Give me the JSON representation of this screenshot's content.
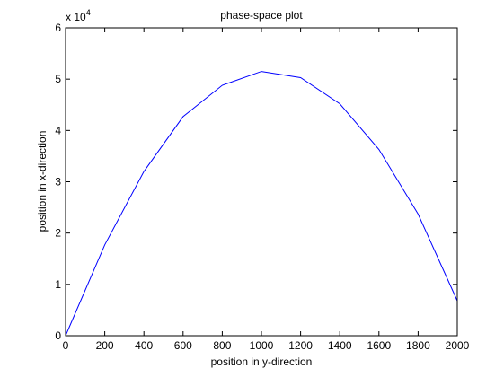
{
  "chart_data": {
    "type": "line",
    "title": "phase-space plot",
    "xlabel": "position in y-direction",
    "ylabel": "position in x-direction",
    "xlim": [
      0,
      2000
    ],
    "ylim": [
      0,
      60000
    ],
    "y_exponent_label": "x 10",
    "y_exponent_power": "4",
    "x_ticks": [
      0,
      200,
      400,
      600,
      800,
      1000,
      1200,
      1400,
      1600,
      1800,
      2000
    ],
    "y_ticks": [
      0,
      10000,
      20000,
      30000,
      40000,
      50000,
      60000
    ],
    "y_tick_labels": [
      "0",
      "1",
      "2",
      "3",
      "4",
      "5",
      "6"
    ],
    "grid": false,
    "series": [
      {
        "color": "#0000ff",
        "x": [
          0,
          200,
          400,
          600,
          800,
          1000,
          1200,
          1400,
          1600,
          1800,
          2000
        ],
        "y": [
          0,
          17700,
          32000,
          42700,
          48800,
          51500,
          50300,
          45200,
          36300,
          23700,
          6800
        ]
      }
    ]
  }
}
